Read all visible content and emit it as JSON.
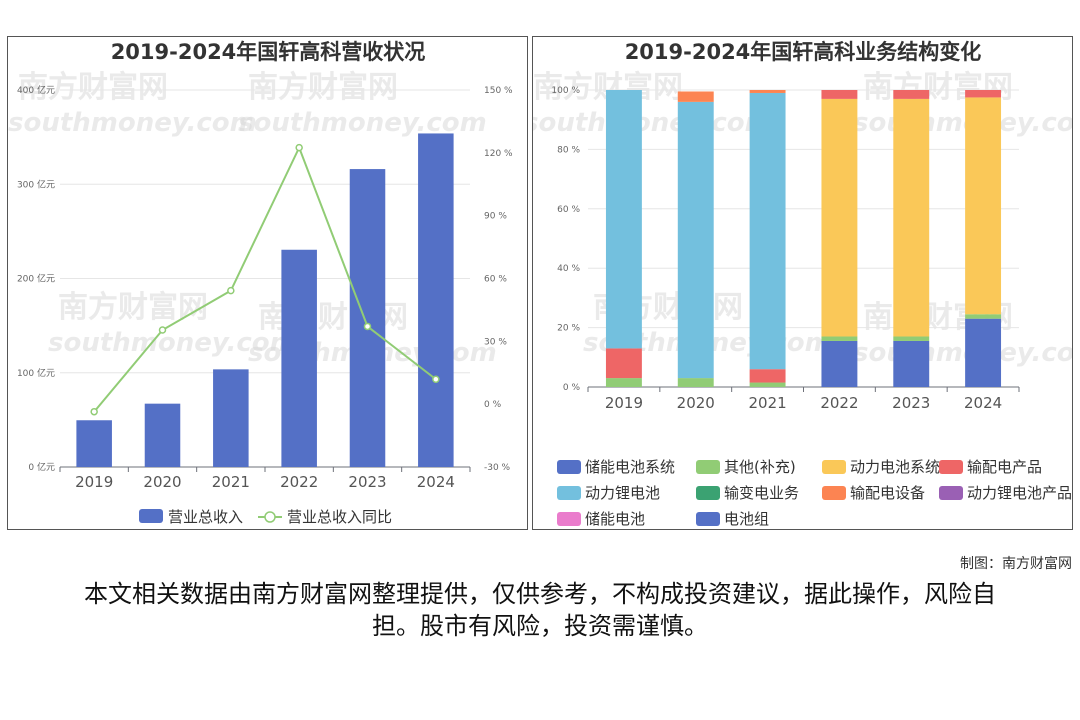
{
  "credit": "制图：南方财富网",
  "disclaimer": "本文相关数据由南方财富网整理提供，仅供参考，不构成投资建议，据此操作，风险自担。股市有风险，投资需谨慎。",
  "watermark": {
    "cn": "南方财富网",
    "en": "southmoney.com"
  },
  "chart_data": [
    {
      "type": "bar",
      "title": "2019-2024年国轩高科营收状况",
      "categories": [
        "2019",
        "2020",
        "2021",
        "2022",
        "2023",
        "2024"
      ],
      "y_left": {
        "range": [
          0,
          400
        ],
        "ticks": [
          "0 亿元",
          "100 亿元",
          "200 亿元",
          "300 亿元",
          "400 亿元"
        ]
      },
      "y_right": {
        "range": [
          -30,
          150
        ],
        "ticks": [
          "-30 %",
          "0 %",
          "30 %",
          "60 %",
          "90 %",
          "120 %",
          "150 %"
        ]
      },
      "grid": true,
      "legend_position": "bottom",
      "series": [
        {
          "name": "营业总收入",
          "type": "bar",
          "axis": "left",
          "color": "#5470c6",
          "values": [
            49.6,
            67.2,
            103.6,
            230.5,
            316.1,
            353.9
          ]
        },
        {
          "name": "营业总收入同比",
          "type": "line",
          "axis": "right",
          "color": "#91cc75",
          "values": [
            -3.6,
            35.4,
            54.2,
            122.5,
            37.1,
            11.9
          ]
        }
      ]
    },
    {
      "type": "bar",
      "stacked": true,
      "title": "2019-2024年国轩高科业务结构变化",
      "categories": [
        "2019",
        "2020",
        "2021",
        "2022",
        "2023",
        "2024"
      ],
      "y": {
        "range": [
          0,
          100
        ],
        "ticks": [
          "0 %",
          "20 %",
          "40 %",
          "60 %",
          "80 %",
          "100 %"
        ]
      },
      "grid": true,
      "legend_position": "bottom",
      "series": [
        {
          "name": "储能电池系统",
          "color": "#5470c6",
          "values": [
            0,
            0,
            0,
            0,
            0,
            0
          ]
        },
        {
          "name": "其他(补充)",
          "color": "#91cc75",
          "values": [
            3,
            3,
            1.5,
            1.5,
            1.5,
            1.5
          ]
        },
        {
          "name": "动力电池系统",
          "color": "#fac858",
          "values": [
            0,
            0,
            0,
            80,
            80,
            73
          ]
        },
        {
          "name": "输配电产品",
          "color": "#ee6666",
          "values": [
            10,
            0,
            4.5,
            3,
            3,
            2.5
          ]
        },
        {
          "name": "动力锂电池",
          "color": "#73c0de",
          "values": [
            87,
            93,
            93,
            0,
            0,
            0
          ]
        },
        {
          "name": "输变电业务",
          "color": "#3ba272",
          "values": [
            0,
            0,
            0,
            0,
            0,
            0
          ]
        },
        {
          "name": "输配电设备",
          "color": "#fc8452",
          "values": [
            0,
            3.5,
            1,
            0,
            0,
            0
          ]
        },
        {
          "name": "动力锂电池产品",
          "color": "#9a60b4",
          "values": [
            0,
            0,
            0,
            0,
            0,
            0
          ]
        },
        {
          "name": "储能电池",
          "color": "#ea7ccc",
          "values": [
            0,
            0,
            0,
            0,
            0,
            0
          ]
        },
        {
          "name": "电池组",
          "color": "#5470c6",
          "values": [
            0,
            0,
            0,
            15.5,
            15.5,
            23
          ]
        }
      ]
    }
  ]
}
